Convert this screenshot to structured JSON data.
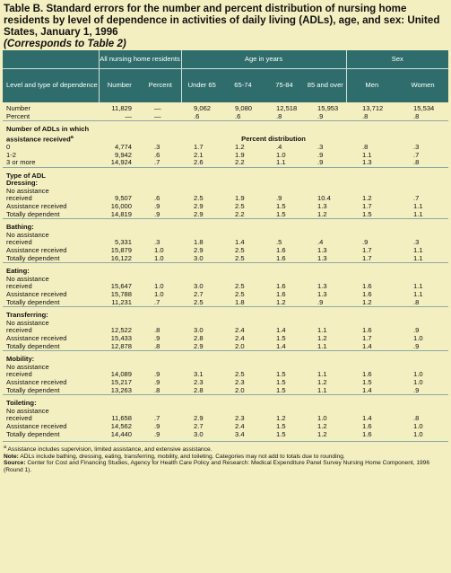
{
  "title": "Table B. Standard errors for the number and percent distribution of nursing home residents by level of dependence in activities of daily living (ADLs), age, and sex: United States, January 1, 1996",
  "subtitle": "(Corresponds to Table 2)",
  "headers": {
    "group_all": "All nursing home residents",
    "group_age": "Age in years",
    "group_sex": "Sex",
    "row_label": "Level and type of dependence",
    "cols": [
      "Number",
      "Percent",
      "Under 65",
      "65-74",
      "75-84",
      "85 and over",
      "Men",
      "Women"
    ]
  },
  "top_rows": [
    {
      "label": "Number",
      "cells": [
        "11,829",
        "—",
        "9,062",
        "9,080",
        "12,518",
        "15,953",
        "13,712",
        "15,534"
      ]
    },
    {
      "label": "Percent",
      "cells": [
        "—",
        "—",
        ".6",
        ".6",
        ".8",
        ".9",
        ".8",
        ".8"
      ]
    }
  ],
  "adl_section": {
    "heading": "Number of ADLs in which assistance received",
    "footnote_mark": "a",
    "percent_distribution": "Percent distribution",
    "rows": [
      {
        "label": "0",
        "cells": [
          "4,774",
          ".3",
          "1.7",
          "1.2",
          ".4",
          ".3",
          ".8",
          ".3"
        ]
      },
      {
        "label": "1-2",
        "cells": [
          "9,942",
          ".6",
          "2.1",
          "1.9",
          "1.0",
          ".9",
          "1.1",
          ".7"
        ]
      },
      {
        "label": "3 or more",
        "cells": [
          "14,924",
          ".7",
          "2.6",
          "2.2",
          "1.1",
          ".9",
          "1.3",
          ".8"
        ]
      }
    ]
  },
  "sections": [
    {
      "heading": "Type of ADL",
      "heading2": "Dressing:",
      "rows": [
        {
          "label": "No assistance",
          "label2": "received",
          "cells": [
            "9,507",
            ".6",
            "2.5",
            "1.9",
            ".9",
            "10.4",
            "1.2",
            ".7"
          ]
        },
        {
          "label": "Assistance received",
          "cells": [
            "16,000",
            ".9",
            "2.9",
            "2.5",
            "1.5",
            "1.3",
            "1.7",
            "1.1"
          ]
        },
        {
          "label": "Totally dependent",
          "cells": [
            "14,819",
            ".9",
            "2.9",
            "2.2",
            "1.5",
            "1.2",
            "1.5",
            "1.1"
          ]
        }
      ]
    },
    {
      "heading": "Bathing:",
      "rows": [
        {
          "label": "No assistance",
          "label2": "received",
          "cells": [
            "5,331",
            ".3",
            "1.8",
            "1.4",
            ".5",
            ".4",
            ".9",
            ".3"
          ]
        },
        {
          "label": "Assistance received",
          "cells": [
            "15,879",
            "1.0",
            "2.9",
            "2.5",
            "1.6",
            "1.3",
            "1.7",
            "1.1"
          ]
        },
        {
          "label": "Totally dependent",
          "cells": [
            "16,122",
            "1.0",
            "3.0",
            "2.5",
            "1.6",
            "1.3",
            "1.7",
            "1.1"
          ]
        }
      ]
    },
    {
      "heading": "Eating:",
      "rows": [
        {
          "label": "No assistance",
          "label2": "received",
          "cells": [
            "15,647",
            "1.0",
            "3.0",
            "2.5",
            "1.6",
            "1.3",
            "1.6",
            "1.1"
          ]
        },
        {
          "label": "Assistance received",
          "cells": [
            "15,788",
            "1.0",
            "2.7",
            "2.5",
            "1.6",
            "1.3",
            "1.6",
            "1.1"
          ]
        },
        {
          "label": "Totally dependent",
          "cells": [
            "11,231",
            ".7",
            "2.5",
            "1.8",
            "1.2",
            ".9",
            "1.2",
            ".8"
          ]
        }
      ]
    },
    {
      "heading": "Transferring:",
      "rows": [
        {
          "label": "No assistance",
          "label2": "received",
          "cells": [
            "12,522",
            ".8",
            "3.0",
            "2.4",
            "1.4",
            "1.1",
            "1.6",
            ".9"
          ]
        },
        {
          "label": "Assistance received",
          "cells": [
            "15,433",
            ".9",
            "2.8",
            "2.4",
            "1.5",
            "1.2",
            "1.7",
            "1.0"
          ]
        },
        {
          "label": "Totally dependent",
          "cells": [
            "12,878",
            ".8",
            "2.9",
            "2.0",
            "1.4",
            "1.1",
            "1.4",
            ".9"
          ]
        }
      ]
    },
    {
      "heading": "Mobility:",
      "rows": [
        {
          "label": "No assistance",
          "label2": "received",
          "cells": [
            "14,089",
            ".9",
            "3.1",
            "2.5",
            "1.5",
            "1.1",
            "1.6",
            "1.0"
          ]
        },
        {
          "label": "Assistance received",
          "cells": [
            "15,217",
            ".9",
            "2.3",
            "2.3",
            "1.5",
            "1.2",
            "1.5",
            "1.0"
          ]
        },
        {
          "label": "Totally dependent",
          "cells": [
            "13,263",
            ".8",
            "2.8",
            "2.0",
            "1.5",
            "1.1",
            "1.4",
            ".9"
          ]
        }
      ]
    },
    {
      "heading": "Toileting:",
      "rows": [
        {
          "label": "No assistance",
          "label2": "received",
          "cells": [
            "11,658",
            ".7",
            "2.9",
            "2.3",
            "1.2",
            "1.0",
            "1.4",
            ".8"
          ]
        },
        {
          "label": "Assistance received",
          "cells": [
            "14,562",
            ".9",
            "2.7",
            "2.4",
            "1.5",
            "1.2",
            "1.6",
            "1.0"
          ]
        },
        {
          "label": "Totally dependent",
          "cells": [
            "14,440",
            ".9",
            "3.0",
            "3.4",
            "1.5",
            "1.2",
            "1.6",
            "1.0"
          ]
        }
      ]
    }
  ],
  "footnotes": {
    "a_mark": "a",
    "a_text": "Assistance includes supervision, limited assistance, and extensive assistance.",
    "note_label": "Note:",
    "note_text": "ADLs include bathing, dressing, eating, transferring, mobility, and toileting. Categories may not add to totals due to rounding.",
    "source_label": "Source:",
    "source_text": "Center for Cost and Financing Studies, Agency for Health Care Policy and Research: Medical Expenditure Panel Survey Nursing Home Component, 1996 (Round 1)."
  }
}
